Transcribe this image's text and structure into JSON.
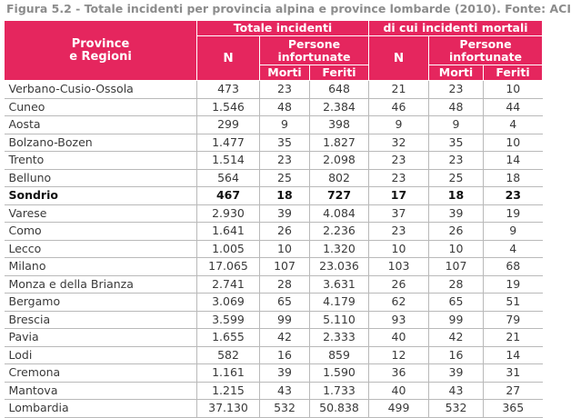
{
  "title": "Figura 5.2 - Totale incidenti per provincia alpina e province lombarde (2010). Fonte: ACI",
  "header": {
    "region_label": "Province e Regioni",
    "region_line1": "Province",
    "region_line2": "e Regioni",
    "group_total": "Totale incidenti",
    "group_fatal": "di cui incidenti mortali",
    "n_label": "N",
    "persons_line1": "Persone",
    "persons_line2": "infortunate",
    "dead_label": "Morti",
    "injured_label": "Feriti"
  },
  "colors": {
    "header_bg": "#e5265e",
    "header_text": "#ffffff",
    "title_text": "#8c8c8c",
    "rule": "#b9b9b9"
  },
  "rows": [
    {
      "name": "Verbano-Cusio-Ossola",
      "n": "473",
      "morti": "23",
      "feriti": "648",
      "n_m": "21",
      "morti_m": "23",
      "feriti_m": "10",
      "bold": false
    },
    {
      "name": "Cuneo",
      "n": "1.546",
      "morti": "48",
      "feriti": "2.384",
      "n_m": "46",
      "morti_m": "48",
      "feriti_m": "44",
      "bold": false
    },
    {
      "name": "Aosta",
      "n": "299",
      "morti": "9",
      "feriti": "398",
      "n_m": "9",
      "morti_m": "9",
      "feriti_m": "4",
      "bold": false
    },
    {
      "name": "Bolzano-Bozen",
      "n": "1.477",
      "morti": "35",
      "feriti": "1.827",
      "n_m": "32",
      "morti_m": "35",
      "feriti_m": "10",
      "bold": false
    },
    {
      "name": "Trento",
      "n": "1.514",
      "morti": "23",
      "feriti": "2.098",
      "n_m": "23",
      "morti_m": "23",
      "feriti_m": "14",
      "bold": false
    },
    {
      "name": "Belluno",
      "n": "564",
      "morti": "25",
      "feriti": "802",
      "n_m": "23",
      "morti_m": "25",
      "feriti_m": "18",
      "bold": false
    },
    {
      "name": "Sondrio",
      "n": "467",
      "morti": "18",
      "feriti": "727",
      "n_m": "17",
      "morti_m": "18",
      "feriti_m": "23",
      "bold": true
    },
    {
      "name": "Varese",
      "n": "2.930",
      "morti": "39",
      "feriti": "4.084",
      "n_m": "37",
      "morti_m": "39",
      "feriti_m": "19",
      "bold": false
    },
    {
      "name": "Como",
      "n": "1.641",
      "morti": "26",
      "feriti": "2.236",
      "n_m": "23",
      "morti_m": "26",
      "feriti_m": "9",
      "bold": false
    },
    {
      "name": "Lecco",
      "n": "1.005",
      "morti": "10",
      "feriti": "1.320",
      "n_m": "10",
      "morti_m": "10",
      "feriti_m": "4",
      "bold": false
    },
    {
      "name": "Milano",
      "n": "17.065",
      "morti": "107",
      "feriti": "23.036",
      "n_m": "103",
      "morti_m": "107",
      "feriti_m": "68",
      "bold": false
    },
    {
      "name": "Monza e della Brianza",
      "n": "2.741",
      "morti": "28",
      "feriti": "3.631",
      "n_m": "26",
      "morti_m": "28",
      "feriti_m": "19",
      "bold": false
    },
    {
      "name": "Bergamo",
      "n": "3.069",
      "morti": "65",
      "feriti": "4.179",
      "n_m": "62",
      "morti_m": "65",
      "feriti_m": "51",
      "bold": false
    },
    {
      "name": "Brescia",
      "n": "3.599",
      "morti": "99",
      "feriti": "5.110",
      "n_m": "93",
      "morti_m": "99",
      "feriti_m": "79",
      "bold": false
    },
    {
      "name": "Pavia",
      "n": "1.655",
      "morti": "42",
      "feriti": "2.333",
      "n_m": "40",
      "morti_m": "42",
      "feriti_m": "21",
      "bold": false
    },
    {
      "name": "Lodi",
      "n": "582",
      "morti": "16",
      "feriti": "859",
      "n_m": "12",
      "morti_m": "16",
      "feriti_m": "14",
      "bold": false
    },
    {
      "name": "Cremona",
      "n": "1.161",
      "morti": "39",
      "feriti": "1.590",
      "n_m": "36",
      "morti_m": "39",
      "feriti_m": "31",
      "bold": false
    },
    {
      "name": "Mantova",
      "n": "1.215",
      "morti": "43",
      "feriti": "1.733",
      "n_m": "40",
      "morti_m": "43",
      "feriti_m": "27",
      "bold": false
    },
    {
      "name": "Lombardia",
      "n": "37.130",
      "morti": "532",
      "feriti": "50.838",
      "n_m": "499",
      "morti_m": "532",
      "feriti_m": "365",
      "bold": false
    }
  ]
}
